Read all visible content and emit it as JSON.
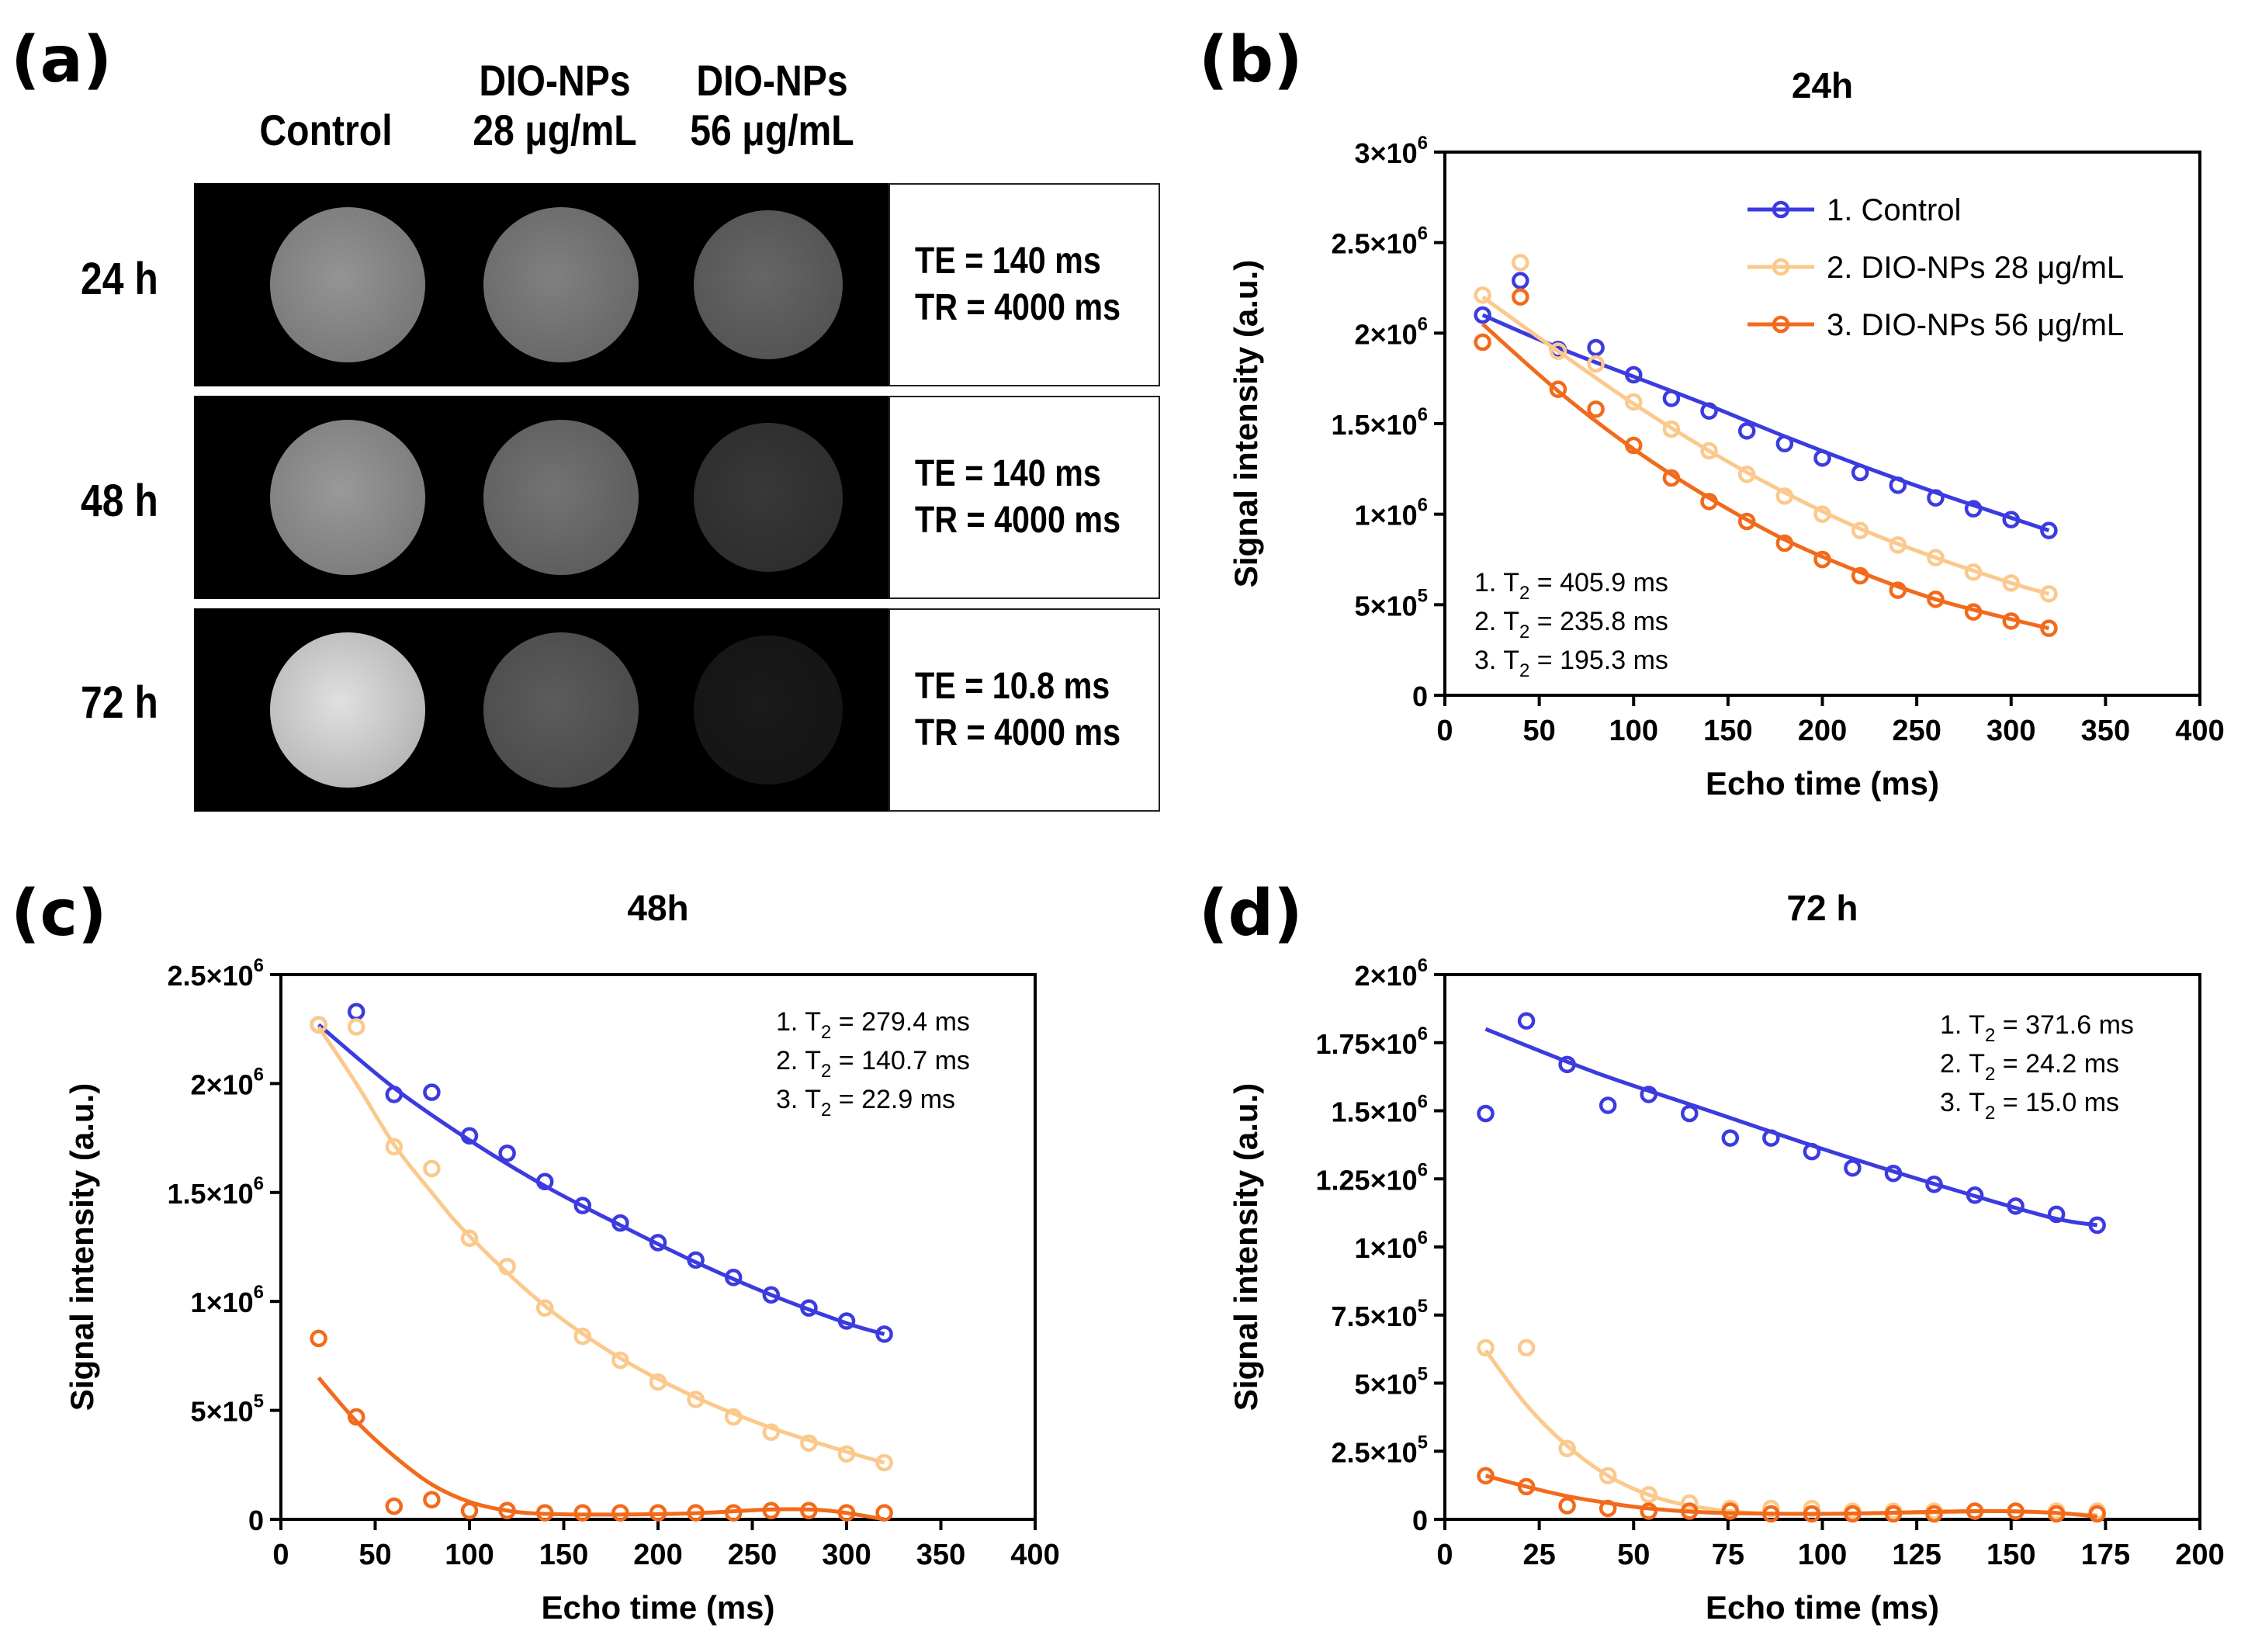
{
  "panel_a": {
    "label": "(a)",
    "columns": [
      {
        "line1": "",
        "line2": "Control"
      },
      {
        "line1": "DIO-NPs",
        "line2": "28 μg/mL"
      },
      {
        "line1": "DIO-NPs",
        "line2": "56 μg/mL"
      }
    ],
    "rows": [
      {
        "label": "24 h",
        "te": "TE = 140 ms",
        "tr": "TR = 4000 ms",
        "intensity": [
          0.58,
          0.5,
          0.4
        ]
      },
      {
        "label": "48 h",
        "te": "TE = 140 ms",
        "tr": "TR = 4000 ms",
        "intensity": [
          0.6,
          0.45,
          0.22
        ]
      },
      {
        "label": "72 h",
        "te": "TE = 10.8 ms",
        "tr": "TR = 4000 ms",
        "intensity": [
          0.88,
          0.36,
          0.1
        ]
      }
    ]
  },
  "colors": {
    "control": "#3b3bdf",
    "np28": "#fbc98c",
    "np56": "#f26a1b"
  },
  "chart_data": [
    {
      "panel_label": "(b)",
      "type": "scatter",
      "title": "24h",
      "xlabel": "Echo time (ms)",
      "ylabel": "Signal intensity (a.u.)",
      "xlim": [
        0,
        400
      ],
      "xticks": [
        "0",
        "50",
        "100",
        "150",
        "200",
        "250",
        "300",
        "350",
        "400"
      ],
      "xtick_values": [
        0,
        50,
        100,
        150,
        200,
        250,
        300,
        350,
        400
      ],
      "ylim": [
        0,
        3000000
      ],
      "yticks": [
        {
          "v": 0,
          "base": "0",
          "exp": ""
        },
        {
          "v": 500000,
          "base": "5×10",
          "exp": "5"
        },
        {
          "v": 1000000,
          "base": "1×10",
          "exp": "6"
        },
        {
          "v": 1500000,
          "base": "1.5×10",
          "exp": "6"
        },
        {
          "v": 2000000,
          "base": "2×10",
          "exp": "6"
        },
        {
          "v": 2500000,
          "base": "2.5×10",
          "exp": "6"
        },
        {
          "v": 3000000,
          "base": "3×10",
          "exp": "6"
        }
      ],
      "legend": {
        "position": "top-right",
        "entries": [
          "1. Control",
          "2. DIO-NPs 28 μg/mL",
          "3. DIO-NPs 56 μg/mL"
        ]
      },
      "annotations": [
        {
          "prefix": "1. T",
          "sub": "2",
          "suffix": " = 405.9 ms"
        },
        {
          "prefix": "2. T",
          "sub": "2",
          "suffix": " = 235.8 ms"
        },
        {
          "prefix": "3. T",
          "sub": "2",
          "suffix": " = 195.3 ms"
        }
      ],
      "annotation_position": "bottom-left",
      "series": [
        {
          "name": "1. Control",
          "color_key": "control",
          "x": [
            20,
            40,
            60,
            80,
            100,
            120,
            140,
            160,
            180,
            200,
            220,
            240,
            260,
            280,
            300,
            320
          ],
          "y": [
            2100000,
            2290000,
            1910000,
            1920000,
            1770000,
            1640000,
            1570000,
            1460000,
            1390000,
            1310000,
            1230000,
            1160000,
            1090000,
            1030000,
            970000,
            910000
          ],
          "fit_x": [
            20,
            60,
            100,
            140,
            180,
            220,
            260,
            300,
            320
          ],
          "fit_y": [
            2100000,
            1920000,
            1760000,
            1600000,
            1430000,
            1270000,
            1120000,
            980000,
            910000
          ]
        },
        {
          "name": "2. DIO-NPs 28 μg/mL",
          "color_key": "np28",
          "x": [
            20,
            40,
            60,
            80,
            100,
            120,
            140,
            160,
            180,
            200,
            220,
            240,
            260,
            280,
            300,
            320
          ],
          "y": [
            2210000,
            2390000,
            1900000,
            1830000,
            1620000,
            1470000,
            1350000,
            1220000,
            1100000,
            1000000,
            910000,
            830000,
            760000,
            680000,
            620000,
            560000
          ],
          "fit_x": [
            20,
            60,
            100,
            140,
            180,
            220,
            260,
            300,
            320
          ],
          "fit_y": [
            2200000,
            1900000,
            1610000,
            1350000,
            1120000,
            920000,
            760000,
            620000,
            560000
          ]
        },
        {
          "name": "3. DIO-NPs 56 μg/mL",
          "color_key": "np56",
          "x": [
            20,
            40,
            60,
            80,
            100,
            120,
            140,
            160,
            180,
            200,
            220,
            240,
            260,
            280,
            300,
            320
          ],
          "y": [
            1950000,
            2200000,
            1690000,
            1580000,
            1380000,
            1200000,
            1070000,
            960000,
            840000,
            750000,
            660000,
            580000,
            530000,
            460000,
            410000,
            370000
          ],
          "fit_x": [
            20,
            60,
            100,
            140,
            180,
            220,
            260,
            300,
            320
          ],
          "fit_y": [
            2050000,
            1680000,
            1360000,
            1090000,
            860000,
            680000,
            530000,
            420000,
            370000
          ]
        }
      ]
    },
    {
      "panel_label": "(c)",
      "type": "scatter",
      "title": "48h",
      "xlabel": "Echo time (ms)",
      "ylabel": "Signal intensity (a.u.)",
      "xlim": [
        0,
        400
      ],
      "xticks": [
        "0",
        "50",
        "100",
        "150",
        "200",
        "250",
        "300",
        "350",
        "400"
      ],
      "xtick_values": [
        0,
        50,
        100,
        150,
        200,
        250,
        300,
        350,
        400
      ],
      "ylim": [
        0,
        2500000
      ],
      "yticks": [
        {
          "v": 0,
          "base": "0",
          "exp": ""
        },
        {
          "v": 500000,
          "base": "5×10",
          "exp": "5"
        },
        {
          "v": 1000000,
          "base": "1×10",
          "exp": "6"
        },
        {
          "v": 1500000,
          "base": "1.5×10",
          "exp": "6"
        },
        {
          "v": 2000000,
          "base": "2×10",
          "exp": "6"
        },
        {
          "v": 2500000,
          "base": "2.5×10",
          "exp": "6"
        }
      ],
      "annotations": [
        {
          "prefix": "1. T",
          "sub": "2",
          "suffix": " = 279.4 ms"
        },
        {
          "prefix": "2. T",
          "sub": "2",
          "suffix": " = 140.7 ms"
        },
        {
          "prefix": "3. T",
          "sub": "2",
          "suffix": " = 22.9 ms"
        }
      ],
      "annotation_position": "top-right",
      "series": [
        {
          "name": "1. Control",
          "color_key": "control",
          "x": [
            20,
            40,
            60,
            80,
            100,
            120,
            140,
            160,
            180,
            200,
            220,
            240,
            260,
            280,
            300,
            320
          ],
          "y": [
            2270000,
            2330000,
            1950000,
            1960000,
            1760000,
            1680000,
            1550000,
            1440000,
            1360000,
            1270000,
            1190000,
            1110000,
            1030000,
            970000,
            910000,
            850000
          ],
          "fit_x": [
            20,
            60,
            100,
            140,
            180,
            220,
            260,
            300,
            320
          ],
          "fit_y": [
            2270000,
            1980000,
            1740000,
            1530000,
            1350000,
            1180000,
            1030000,
            900000,
            850000
          ]
        },
        {
          "name": "2. DIO-NPs 28 μg/mL",
          "color_key": "np28",
          "x": [
            20,
            40,
            60,
            80,
            100,
            120,
            140,
            160,
            180,
            200,
            220,
            240,
            260,
            280,
            300,
            320
          ],
          "y": [
            2270000,
            2260000,
            1710000,
            1610000,
            1290000,
            1160000,
            970000,
            840000,
            730000,
            630000,
            550000,
            470000,
            400000,
            350000,
            300000,
            260000
          ],
          "fit_x": [
            20,
            40,
            60,
            80,
            100,
            140,
            180,
            220,
            260,
            300,
            320
          ],
          "fit_y": [
            2260000,
            2000000,
            1720000,
            1500000,
            1300000,
            980000,
            740000,
            560000,
            420000,
            310000,
            260000
          ]
        },
        {
          "name": "3. DIO-NPs 56 μg/mL",
          "color_key": "np56",
          "x": [
            20,
            40,
            60,
            80,
            100,
            120,
            140,
            160,
            180,
            200,
            220,
            240,
            260,
            280,
            300,
            320
          ],
          "y": [
            830000,
            470000,
            60000,
            90000,
            40000,
            40000,
            30000,
            30000,
            30000,
            30000,
            30000,
            30000,
            40000,
            40000,
            30000,
            30000
          ],
          "fit_x": [
            20,
            40,
            60,
            80,
            100,
            120,
            140,
            180,
            220,
            260,
            290,
            320
          ],
          "fit_y": [
            650000,
            450000,
            290000,
            160000,
            80000,
            40000,
            25000,
            22000,
            28000,
            45000,
            40000,
            0
          ]
        }
      ]
    },
    {
      "panel_label": "(d)",
      "type": "scatter",
      "title": "72 h",
      "xlabel": "Echo time (ms)",
      "ylabel": "Signal intensity (a.u.)",
      "xlim": [
        0,
        200
      ],
      "xticks": [
        "0",
        "25",
        "50",
        "75",
        "100",
        "125",
        "150",
        "175",
        "200"
      ],
      "xtick_values": [
        0,
        25,
        50,
        75,
        100,
        125,
        150,
        175,
        200
      ],
      "ylim": [
        0,
        2000000
      ],
      "yticks": [
        {
          "v": 0,
          "base": "0",
          "exp": ""
        },
        {
          "v": 250000,
          "base": "2.5×10",
          "exp": "5"
        },
        {
          "v": 500000,
          "base": "5×10",
          "exp": "5"
        },
        {
          "v": 750000,
          "base": "7.5×10",
          "exp": "5"
        },
        {
          "v": 1000000,
          "base": "1×10",
          "exp": "6"
        },
        {
          "v": 1250000,
          "base": "1.25×10",
          "exp": "6"
        },
        {
          "v": 1500000,
          "base": "1.5×10",
          "exp": "6"
        },
        {
          "v": 1750000,
          "base": "1.75×10",
          "exp": "6"
        },
        {
          "v": 2000000,
          "base": "2×10",
          "exp": "6"
        }
      ],
      "annotations": [
        {
          "prefix": "1. T",
          "sub": "2",
          "suffix": " = 371.6 ms"
        },
        {
          "prefix": "2. T",
          "sub": "2",
          "suffix": " = 24.2 ms"
        },
        {
          "prefix": "3. T",
          "sub": "2",
          "suffix": " = 15.0 ms"
        }
      ],
      "annotation_position": "top-right",
      "series": [
        {
          "name": "1. Control",
          "color_key": "control",
          "x": [
            10.8,
            21.6,
            32.4,
            43.2,
            54,
            64.8,
            75.6,
            86.4,
            97.2,
            108,
            118.8,
            129.6,
            140.4,
            151.2,
            162,
            172.8
          ],
          "y": [
            1490000,
            1830000,
            1670000,
            1520000,
            1560000,
            1490000,
            1400000,
            1400000,
            1350000,
            1290000,
            1270000,
            1230000,
            1190000,
            1150000,
            1120000,
            1080000
          ],
          "fit_x": [
            10.8,
            40,
            70,
            100,
            130,
            160,
            172.8
          ],
          "fit_y": [
            1800000,
            1640000,
            1500000,
            1360000,
            1230000,
            1110000,
            1080000
          ]
        },
        {
          "name": "2. DIO-NPs 28 μg/mL",
          "color_key": "np28",
          "x": [
            10.8,
            21.6,
            32.4,
            43.2,
            54,
            64.8,
            75.6,
            86.4,
            97.2,
            108,
            118.8,
            129.6,
            140.4,
            151.2,
            162,
            172.8
          ],
          "y": [
            630000,
            630000,
            260000,
            160000,
            90000,
            60000,
            40000,
            40000,
            40000,
            30000,
            30000,
            30000,
            30000,
            30000,
            30000,
            30000
          ],
          "fit_x": [
            10.8,
            21.6,
            32.4,
            43.2,
            54,
            64.8,
            80,
            100,
            130,
            150,
            172.8
          ],
          "fit_y": [
            620000,
            420000,
            270000,
            160000,
            90000,
            50000,
            25000,
            20000,
            25000,
            30000,
            15000
          ]
        },
        {
          "name": "3. DIO-NPs 56 μg/mL",
          "color_key": "np56",
          "x": [
            10.8,
            21.6,
            32.4,
            43.2,
            54,
            64.8,
            75.6,
            86.4,
            97.2,
            108,
            118.8,
            129.6,
            140.4,
            151.2,
            162,
            172.8
          ],
          "y": [
            160000,
            120000,
            50000,
            40000,
            30000,
            30000,
            30000,
            20000,
            20000,
            20000,
            20000,
            20000,
            30000,
            30000,
            20000,
            20000
          ],
          "fit_x": [
            10.8,
            21.6,
            32.4,
            43.2,
            54,
            70,
            100,
            140,
            160,
            172.8
          ],
          "fit_y": [
            160000,
            120000,
            85000,
            60000,
            40000,
            25000,
            20000,
            30000,
            25000,
            10000
          ]
        }
      ]
    }
  ]
}
